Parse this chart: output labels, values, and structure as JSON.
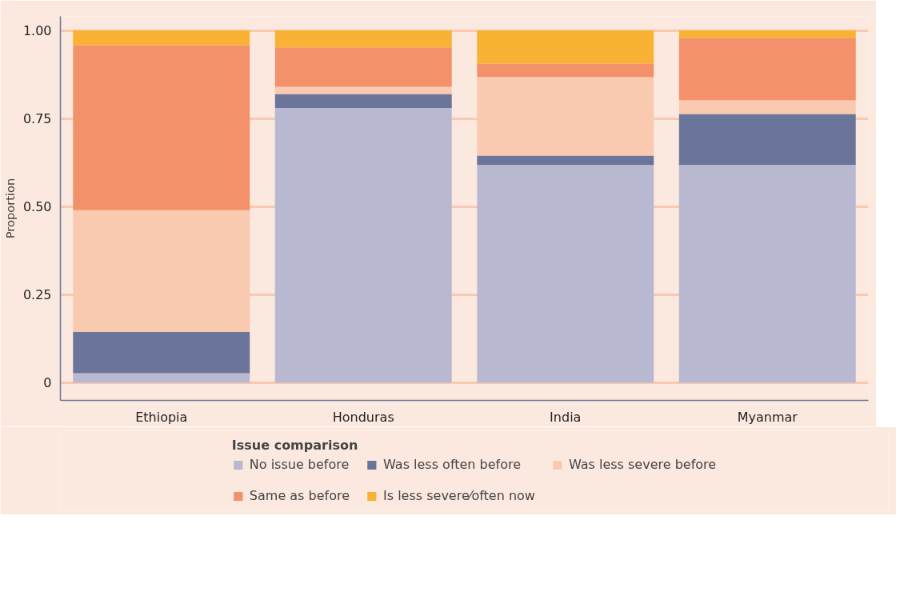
{
  "chart_data": {
    "type": "bar",
    "stacked": true,
    "ylabel": "Proportion",
    "legend_title": "Issue comparison",
    "legend": "bottom",
    "grid": "y",
    "categories": [
      "Ethiopia",
      "Honduras",
      "India",
      "Myanmar"
    ],
    "ylim": [
      -0.05,
      1.04
    ],
    "yticks": [
      0,
      {
        "value": 0.25,
        "label": "0.25"
      },
      {
        "value": 0.5,
        "label": "0.50"
      },
      {
        "value": 0.75,
        "label": "0.75"
      },
      {
        "value": 1,
        "label": "1.00"
      }
    ],
    "series": [
      {
        "name": "No issue before",
        "color": "#b8b8d0",
        "values": [
          0.027,
          0.78,
          0.618,
          0.618
        ]
      },
      {
        "name": "Was less often before",
        "color": "#6b7599",
        "values": [
          0.118,
          0.04,
          0.027,
          0.145
        ]
      },
      {
        "name": "Was less severe before",
        "color": "#f9c9b0",
        "values": [
          0.345,
          0.02,
          0.223,
          0.039
        ]
      },
      {
        "name": "Same as before",
        "color": "#f2916a",
        "values": [
          0.468,
          0.112,
          0.038,
          0.177
        ]
      },
      {
        "name": "Is less severe⁄often now",
        "color": "#f9b233",
        "values": [
          0.042,
          0.048,
          0.094,
          0.021
        ]
      }
    ]
  }
}
